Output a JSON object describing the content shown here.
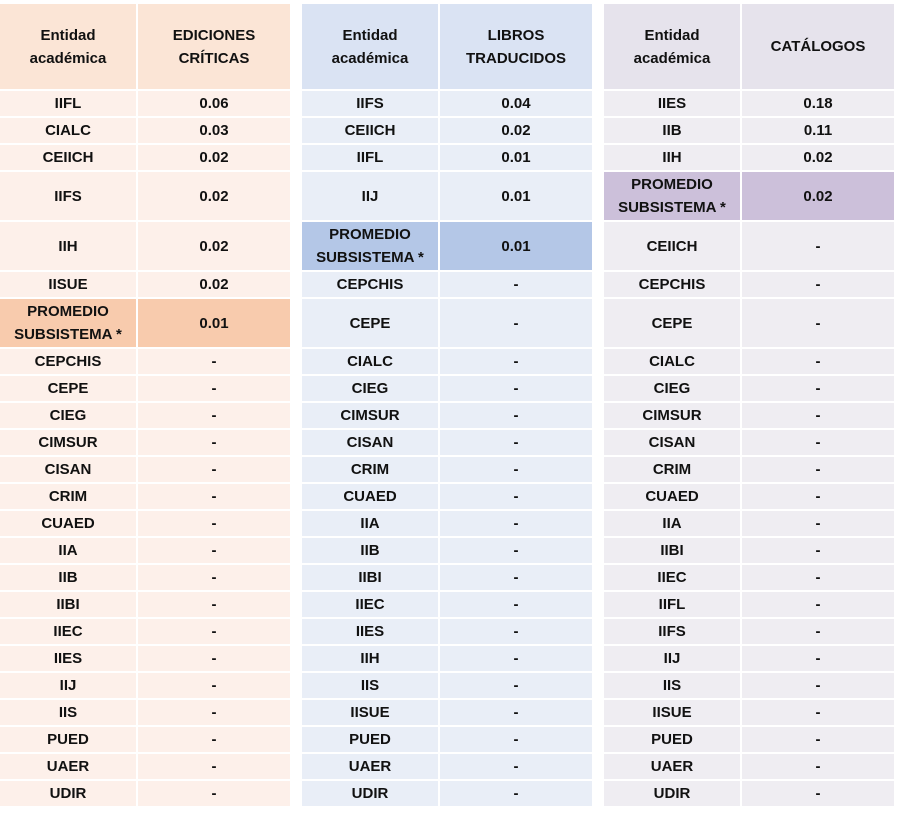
{
  "panels": [
    {
      "id": "ediciones-criticas",
      "header": [
        "Entidad\nacadémica",
        "EDICIONES\nCRÍTICAS"
      ],
      "colors": {
        "header": "#fbe5d6",
        "body": "#fdf0ea",
        "highlight": "#f8cbad"
      },
      "rows": [
        {
          "entity": "IIFL",
          "value": "0.06"
        },
        {
          "entity": "CIALC",
          "value": "0.03"
        },
        {
          "entity": "CEIICH",
          "value": "0.02"
        },
        {
          "entity": "IIFS",
          "value": "0.02",
          "tall": true
        },
        {
          "entity": "IIH",
          "value": "0.02",
          "tall": true
        },
        {
          "entity": "IISUE",
          "value": "0.02"
        },
        {
          "entity": "PROMEDIO\nSUBSISTEMA *",
          "value": "0.01",
          "tall": true,
          "highlight": true
        },
        {
          "entity": "CEPCHIS",
          "value": "-"
        },
        {
          "entity": "CEPE",
          "value": "-"
        },
        {
          "entity": "CIEG",
          "value": "-"
        },
        {
          "entity": "CIMSUR",
          "value": "-"
        },
        {
          "entity": "CISAN",
          "value": "-"
        },
        {
          "entity": "CRIM",
          "value": "-"
        },
        {
          "entity": "CUAED",
          "value": "-"
        },
        {
          "entity": "IIA",
          "value": "-"
        },
        {
          "entity": "IIB",
          "value": "-"
        },
        {
          "entity": "IIBI",
          "value": "-"
        },
        {
          "entity": "IIEC",
          "value": "-"
        },
        {
          "entity": "IIES",
          "value": "-"
        },
        {
          "entity": "IIJ",
          "value": "-"
        },
        {
          "entity": "IIS",
          "value": "-"
        },
        {
          "entity": "PUED",
          "value": "-"
        },
        {
          "entity": "UAER",
          "value": "-"
        },
        {
          "entity": "UDIR",
          "value": "-"
        }
      ]
    },
    {
      "id": "libros-traducidos",
      "header": [
        "Entidad\nacadémica",
        "LIBROS\nTRADUCIDOS"
      ],
      "colors": {
        "header": "#dae3f3",
        "body": "#e9eef7",
        "highlight": "#b4c7e7"
      },
      "rows": [
        {
          "entity": "IIFS",
          "value": "0.04"
        },
        {
          "entity": "CEIICH",
          "value": "0.02"
        },
        {
          "entity": "IIFL",
          "value": "0.01"
        },
        {
          "entity": "IIJ",
          "value": "0.01",
          "tall": true
        },
        {
          "entity": "PROMEDIO\nSUBSISTEMA *",
          "value": "0.01",
          "tall": true,
          "highlight": true
        },
        {
          "entity": "CEPCHIS",
          "value": "-"
        },
        {
          "entity": "CEPE",
          "value": "-",
          "tall": true
        },
        {
          "entity": "CIALC",
          "value": "-"
        },
        {
          "entity": "CIEG",
          "value": "-"
        },
        {
          "entity": "CIMSUR",
          "value": "-"
        },
        {
          "entity": "CISAN",
          "value": "-"
        },
        {
          "entity": "CRIM",
          "value": "-"
        },
        {
          "entity": "CUAED",
          "value": "-"
        },
        {
          "entity": "IIA",
          "value": "-"
        },
        {
          "entity": "IIB",
          "value": "-"
        },
        {
          "entity": "IIBI",
          "value": "-"
        },
        {
          "entity": "IIEC",
          "value": "-"
        },
        {
          "entity": "IIES",
          "value": "-"
        },
        {
          "entity": "IIH",
          "value": "-"
        },
        {
          "entity": "IIS",
          "value": "-"
        },
        {
          "entity": "IISUE",
          "value": "-"
        },
        {
          "entity": "PUED",
          "value": "-"
        },
        {
          "entity": "UAER",
          "value": "-"
        },
        {
          "entity": "UDIR",
          "value": "-"
        }
      ]
    },
    {
      "id": "catalogos",
      "header": [
        "Entidad\nacadémica",
        "CATÁLOGOS"
      ],
      "colors": {
        "header": "#e6e3ec",
        "body": "#efedf2",
        "highlight": "#ccc0da"
      },
      "rows": [
        {
          "entity": "IIES",
          "value": "0.18"
        },
        {
          "entity": "IIB",
          "value": "0.11"
        },
        {
          "entity": "IIH",
          "value": "0.02"
        },
        {
          "entity": "PROMEDIO\nSUBSISTEMA *",
          "value": "0.02",
          "tall": true,
          "highlight": true
        },
        {
          "entity": "CEIICH",
          "value": "-",
          "tall": true
        },
        {
          "entity": "CEPCHIS",
          "value": "-"
        },
        {
          "entity": "CEPE",
          "value": "-",
          "tall": true
        },
        {
          "entity": "CIALC",
          "value": "-"
        },
        {
          "entity": "CIEG",
          "value": "-"
        },
        {
          "entity": "CIMSUR",
          "value": "-"
        },
        {
          "entity": "CISAN",
          "value": "-"
        },
        {
          "entity": "CRIM",
          "value": "-"
        },
        {
          "entity": "CUAED",
          "value": "-"
        },
        {
          "entity": "IIA",
          "value": "-"
        },
        {
          "entity": "IIBI",
          "value": "-"
        },
        {
          "entity": "IIEC",
          "value": "-"
        },
        {
          "entity": "IIFL",
          "value": "-"
        },
        {
          "entity": "IIFS",
          "value": "-"
        },
        {
          "entity": "IIJ",
          "value": "-"
        },
        {
          "entity": "IIS",
          "value": "-"
        },
        {
          "entity": "IISUE",
          "value": "-"
        },
        {
          "entity": "PUED",
          "value": "-"
        },
        {
          "entity": "UAER",
          "value": "-"
        },
        {
          "entity": "UDIR",
          "value": "-"
        }
      ]
    }
  ]
}
